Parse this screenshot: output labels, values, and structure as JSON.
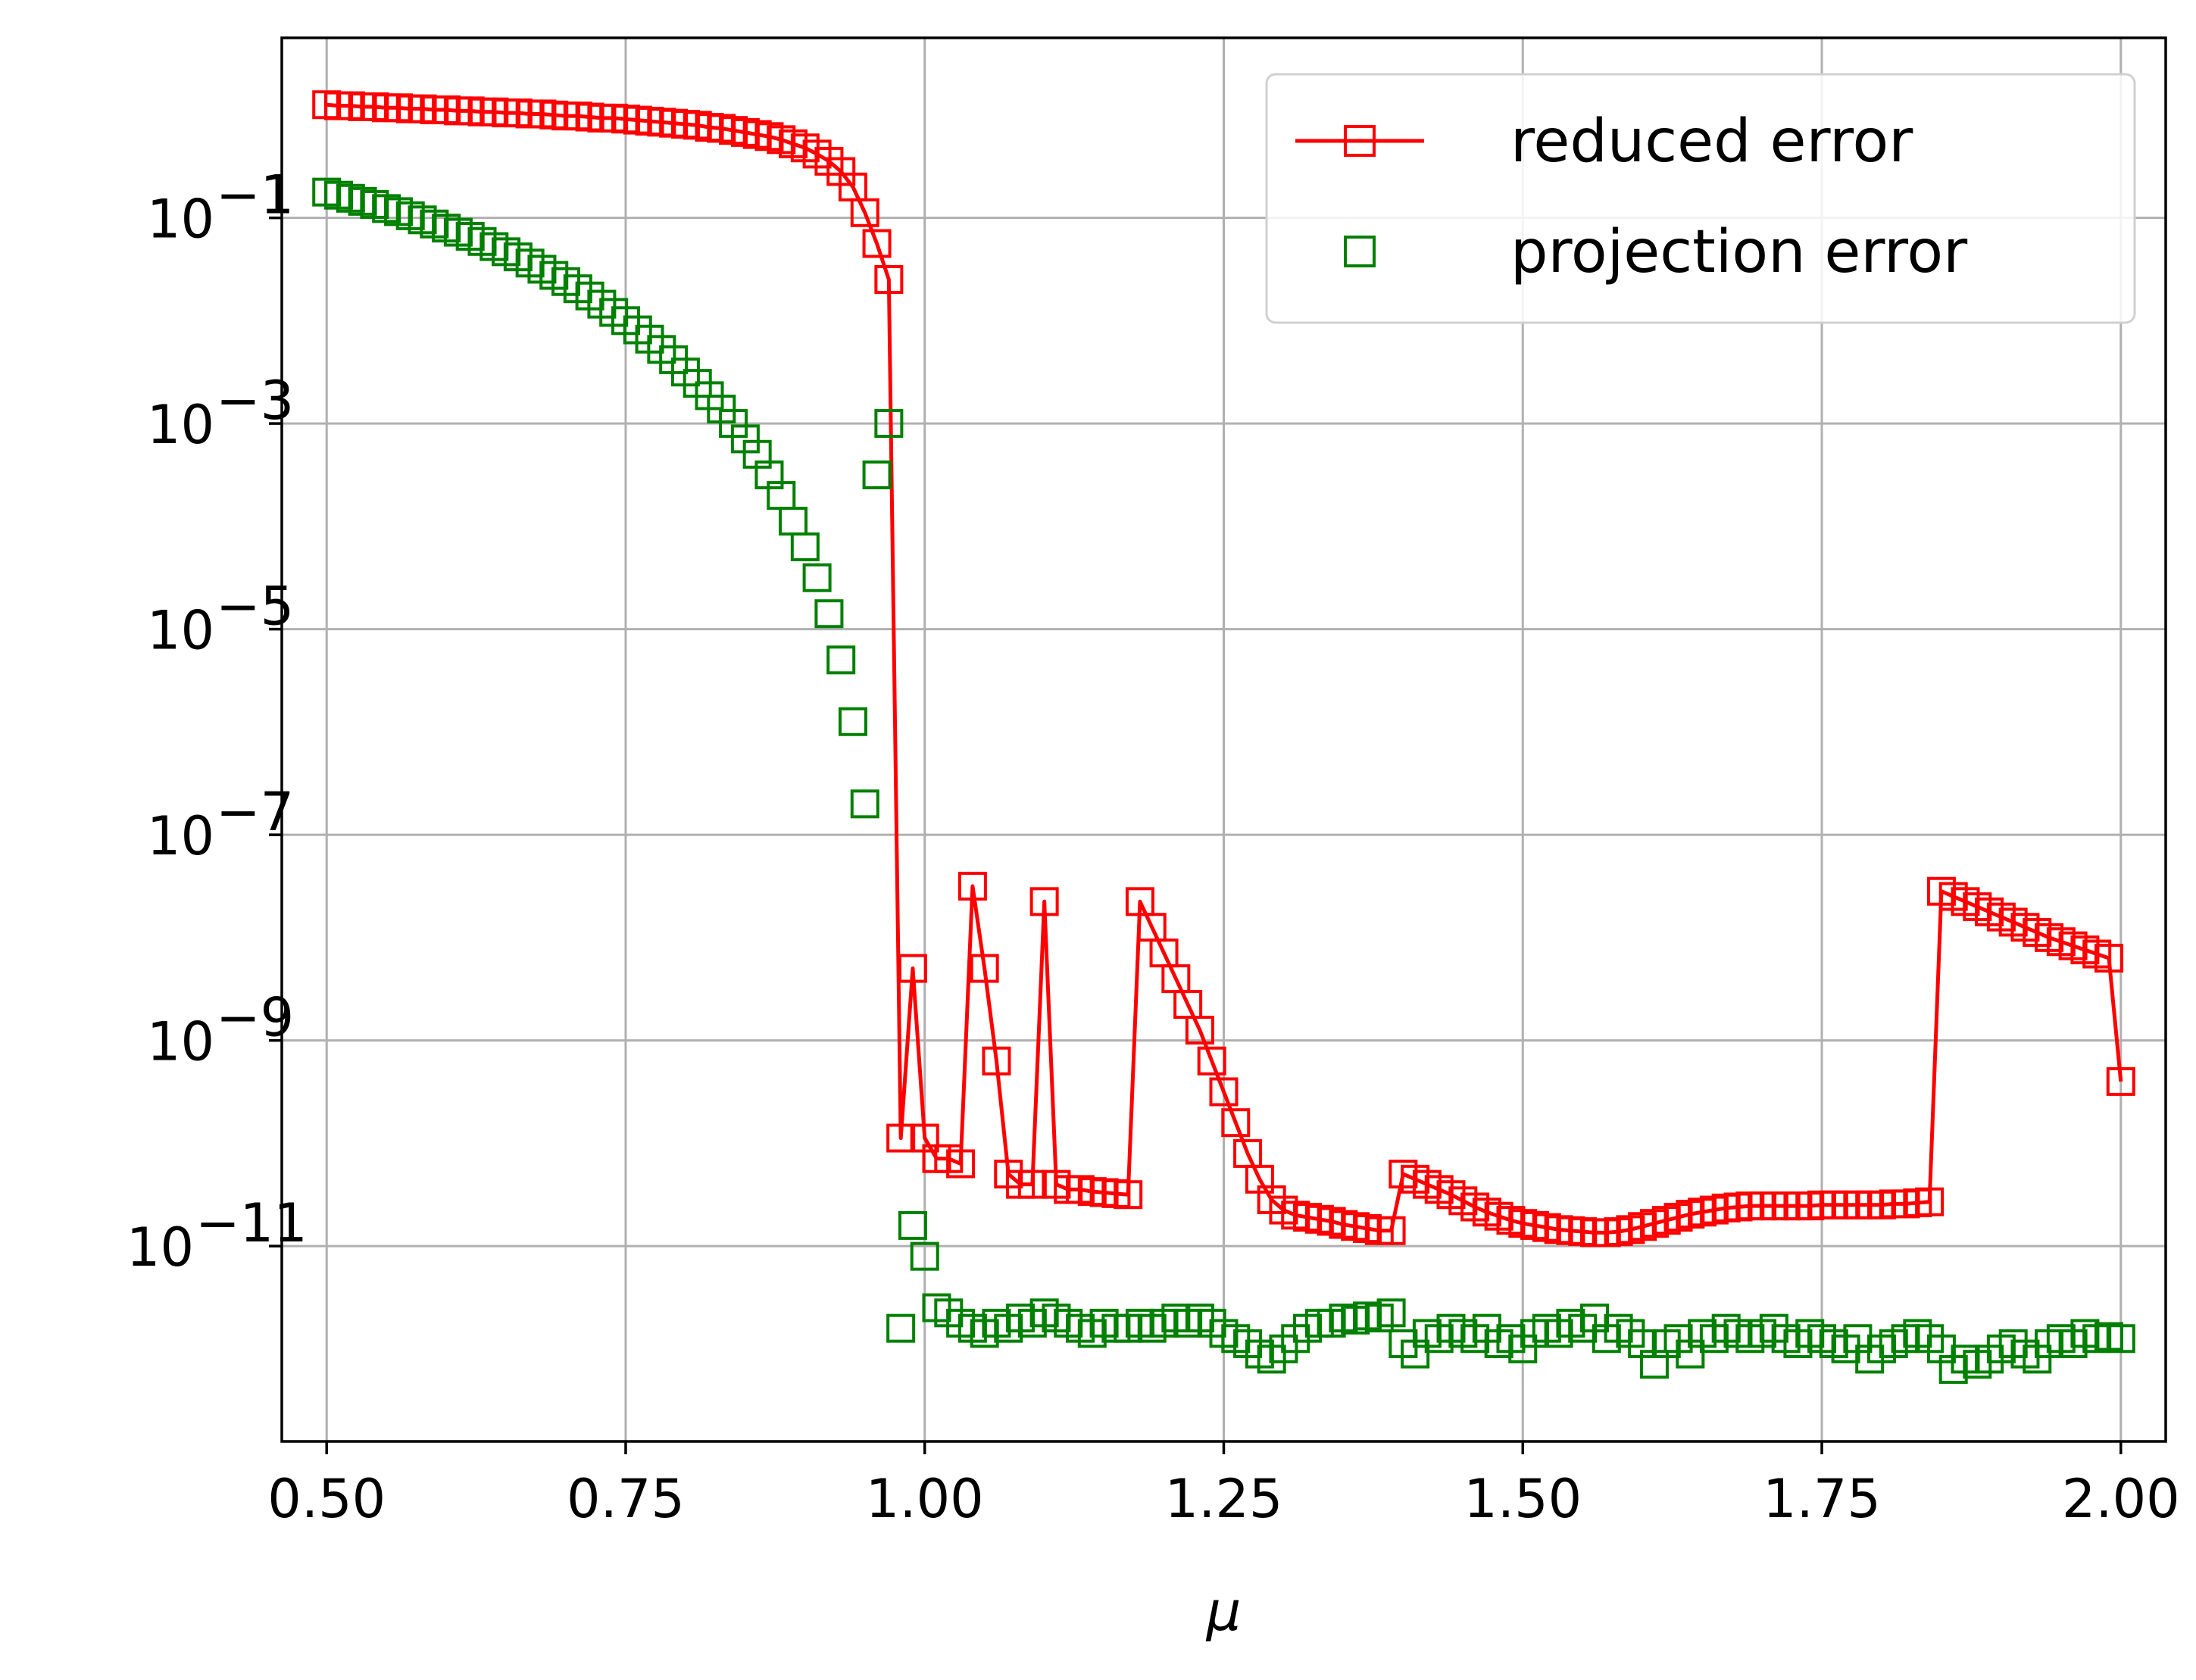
{
  "chart_data": {
    "type": "line",
    "title": "",
    "xlabel": "μ",
    "ylabel": "",
    "x_scale": "linear",
    "y_scale": "log",
    "xlim": [
      0.4625,
      2.0375
    ],
    "ylim_exp": [
      -12.9,
      0.75
    ],
    "grid": true,
    "legend_position": "top-right",
    "x_ticks": [
      0.5,
      0.75,
      1.0,
      1.25,
      1.5,
      1.75,
      2.0
    ],
    "x_tick_labels": [
      "0.50",
      "0.75",
      "1.00",
      "1.25",
      "1.50",
      "1.75",
      "2.00"
    ],
    "y_ticks_exp": [
      -1,
      -3,
      -5,
      -7,
      -9,
      -11
    ],
    "y_tick_base": "10",
    "y_tick_exponents": [
      "−1",
      "−3",
      "−5",
      "−7",
      "−9",
      "−11"
    ],
    "series": [
      {
        "name": "reduced error",
        "color": "#ff0000",
        "line": true,
        "marker": "square-open",
        "points_log10": [
          [
            0.5,
            0.1
          ],
          [
            0.51,
            0.09
          ],
          [
            0.52,
            0.09
          ],
          [
            0.53,
            0.08
          ],
          [
            0.54,
            0.08
          ],
          [
            0.55,
            0.07
          ],
          [
            0.56,
            0.07
          ],
          [
            0.57,
            0.06
          ],
          [
            0.58,
            0.06
          ],
          [
            0.59,
            0.05
          ],
          [
            0.6,
            0.05
          ],
          [
            0.61,
            0.04
          ],
          [
            0.62,
            0.04
          ],
          [
            0.63,
            0.03
          ],
          [
            0.64,
            0.03
          ],
          [
            0.65,
            0.02
          ],
          [
            0.66,
            0.02
          ],
          [
            0.67,
            0.01
          ],
          [
            0.68,
            0.01
          ],
          [
            0.69,
            0.0
          ],
          [
            0.7,
            -0.01
          ],
          [
            0.71,
            -0.01
          ],
          [
            0.72,
            -0.02
          ],
          [
            0.73,
            -0.03
          ],
          [
            0.74,
            -0.03
          ],
          [
            0.75,
            -0.04
          ],
          [
            0.76,
            -0.05
          ],
          [
            0.77,
            -0.06
          ],
          [
            0.78,
            -0.07
          ],
          [
            0.79,
            -0.08
          ],
          [
            0.8,
            -0.09
          ],
          [
            0.81,
            -0.1
          ],
          [
            0.82,
            -0.12
          ],
          [
            0.83,
            -0.13
          ],
          [
            0.84,
            -0.15
          ],
          [
            0.85,
            -0.17
          ],
          [
            0.86,
            -0.19
          ],
          [
            0.87,
            -0.21
          ],
          [
            0.88,
            -0.24
          ],
          [
            0.89,
            -0.28
          ],
          [
            0.9,
            -0.32
          ],
          [
            0.91,
            -0.38
          ],
          [
            0.92,
            -0.45
          ],
          [
            0.93,
            -0.55
          ],
          [
            0.94,
            -0.7
          ],
          [
            0.95,
            -0.95
          ],
          [
            0.96,
            -1.25
          ],
          [
            0.97,
            -1.6
          ],
          [
            0.98,
            -9.95
          ],
          [
            0.99,
            -8.3
          ],
          [
            1.0,
            -9.95
          ],
          [
            1.01,
            -10.15
          ],
          [
            1.02,
            -10.15
          ],
          [
            1.03,
            -10.2
          ],
          [
            1.04,
            -7.5
          ],
          [
            1.05,
            -8.3
          ],
          [
            1.06,
            -9.2
          ],
          [
            1.07,
            -10.3
          ],
          [
            1.08,
            -10.4
          ],
          [
            1.09,
            -10.4
          ],
          [
            1.1,
            -7.65
          ],
          [
            1.11,
            -10.4
          ],
          [
            1.12,
            -10.45
          ],
          [
            1.13,
            -10.45
          ],
          [
            1.14,
            -10.47
          ],
          [
            1.15,
            -10.48
          ],
          [
            1.16,
            -10.49
          ],
          [
            1.17,
            -10.5
          ],
          [
            1.18,
            -7.65
          ],
          [
            1.19,
            -7.9
          ],
          [
            1.2,
            -8.15
          ],
          [
            1.21,
            -8.4
          ],
          [
            1.22,
            -8.65
          ],
          [
            1.23,
            -8.9
          ],
          [
            1.24,
            -9.2
          ],
          [
            1.25,
            -9.5
          ],
          [
            1.26,
            -9.8
          ],
          [
            1.27,
            -10.1
          ],
          [
            1.28,
            -10.35
          ],
          [
            1.29,
            -10.55
          ],
          [
            1.3,
            -10.65
          ],
          [
            1.31,
            -10.7
          ],
          [
            1.32,
            -10.72
          ],
          [
            1.33,
            -10.74
          ],
          [
            1.34,
            -10.76
          ],
          [
            1.35,
            -10.79
          ],
          [
            1.36,
            -10.81
          ],
          [
            1.37,
            -10.83
          ],
          [
            1.38,
            -10.85
          ],
          [
            1.39,
            -10.85
          ],
          [
            1.4,
            -10.3
          ],
          [
            1.41,
            -10.35
          ],
          [
            1.42,
            -10.4
          ],
          [
            1.43,
            -10.45
          ],
          [
            1.44,
            -10.5
          ],
          [
            1.45,
            -10.56
          ],
          [
            1.46,
            -10.62
          ],
          [
            1.47,
            -10.67
          ],
          [
            1.48,
            -10.71
          ],
          [
            1.49,
            -10.75
          ],
          [
            1.5,
            -10.78
          ],
          [
            1.51,
            -10.8
          ],
          [
            1.52,
            -10.82
          ],
          [
            1.53,
            -10.84
          ],
          [
            1.54,
            -10.85
          ],
          [
            1.55,
            -10.86
          ],
          [
            1.56,
            -10.87
          ],
          [
            1.57,
            -10.87
          ],
          [
            1.58,
            -10.86
          ],
          [
            1.59,
            -10.84
          ],
          [
            1.6,
            -10.81
          ],
          [
            1.61,
            -10.78
          ],
          [
            1.62,
            -10.75
          ],
          [
            1.63,
            -10.72
          ],
          [
            1.64,
            -10.69
          ],
          [
            1.65,
            -10.67
          ],
          [
            1.66,
            -10.65
          ],
          [
            1.67,
            -10.63
          ],
          [
            1.68,
            -10.62
          ],
          [
            1.69,
            -10.61
          ],
          [
            1.7,
            -10.61
          ],
          [
            1.71,
            -10.61
          ],
          [
            1.72,
            -10.61
          ],
          [
            1.73,
            -10.61
          ],
          [
            1.74,
            -10.61
          ],
          [
            1.75,
            -10.6
          ],
          [
            1.76,
            -10.6
          ],
          [
            1.77,
            -10.6
          ],
          [
            1.78,
            -10.6
          ],
          [
            1.79,
            -10.6
          ],
          [
            1.8,
            -10.6
          ],
          [
            1.81,
            -10.59
          ],
          [
            1.82,
            -10.59
          ],
          [
            1.83,
            -10.58
          ],
          [
            1.84,
            -10.57
          ],
          [
            1.85,
            -7.55
          ],
          [
            1.86,
            -7.6
          ],
          [
            1.87,
            -7.65
          ],
          [
            1.88,
            -7.7
          ],
          [
            1.89,
            -7.75
          ],
          [
            1.9,
            -7.8
          ],
          [
            1.91,
            -7.85
          ],
          [
            1.92,
            -7.9
          ],
          [
            1.93,
            -7.95
          ],
          [
            1.94,
            -8.0
          ],
          [
            1.95,
            -8.04
          ],
          [
            1.96,
            -8.08
          ],
          [
            1.97,
            -8.12
          ],
          [
            1.98,
            -8.16
          ],
          [
            1.99,
            -8.2
          ],
          [
            2.0,
            -9.4
          ]
        ]
      },
      {
        "name": "projection error",
        "color": "#008000",
        "line": false,
        "marker": "square-open",
        "points_log10": [
          [
            0.5,
            -0.75
          ],
          [
            0.51,
            -0.78
          ],
          [
            0.52,
            -0.81
          ],
          [
            0.53,
            -0.84
          ],
          [
            0.54,
            -0.87
          ],
          [
            0.55,
            -0.91
          ],
          [
            0.56,
            -0.94
          ],
          [
            0.57,
            -0.98
          ],
          [
            0.58,
            -1.02
          ],
          [
            0.59,
            -1.06
          ],
          [
            0.6,
            -1.1
          ],
          [
            0.61,
            -1.14
          ],
          [
            0.62,
            -1.18
          ],
          [
            0.63,
            -1.23
          ],
          [
            0.64,
            -1.28
          ],
          [
            0.65,
            -1.33
          ],
          [
            0.66,
            -1.38
          ],
          [
            0.67,
            -1.44
          ],
          [
            0.68,
            -1.5
          ],
          [
            0.69,
            -1.56
          ],
          [
            0.7,
            -1.62
          ],
          [
            0.71,
            -1.69
          ],
          [
            0.72,
            -1.76
          ],
          [
            0.73,
            -1.84
          ],
          [
            0.74,
            -1.92
          ],
          [
            0.75,
            -2.0
          ],
          [
            0.76,
            -2.09
          ],
          [
            0.77,
            -2.18
          ],
          [
            0.78,
            -2.28
          ],
          [
            0.79,
            -2.38
          ],
          [
            0.8,
            -2.5
          ],
          [
            0.81,
            -2.61
          ],
          [
            0.82,
            -2.73
          ],
          [
            0.83,
            -2.86
          ],
          [
            0.84,
            -3.0
          ],
          [
            0.85,
            -3.15
          ],
          [
            0.86,
            -3.3
          ],
          [
            0.87,
            -3.5
          ],
          [
            0.88,
            -3.7
          ],
          [
            0.89,
            -3.95
          ],
          [
            0.9,
            -4.2
          ],
          [
            0.91,
            -4.5
          ],
          [
            0.92,
            -4.85
          ],
          [
            0.93,
            -5.3
          ],
          [
            0.94,
            -5.9
          ],
          [
            0.95,
            -6.7
          ],
          [
            0.96,
            -3.5
          ],
          [
            0.97,
            -3.0
          ],
          [
            0.98,
            -11.8
          ],
          [
            0.99,
            -10.8
          ],
          [
            1.0,
            -11.1
          ],
          [
            1.01,
            -11.6
          ],
          [
            1.02,
            -11.65
          ],
          [
            1.03,
            -11.75
          ],
          [
            1.04,
            -11.8
          ],
          [
            1.05,
            -11.85
          ],
          [
            1.06,
            -11.75
          ],
          [
            1.07,
            -11.8
          ],
          [
            1.08,
            -11.7
          ],
          [
            1.09,
            -11.75
          ],
          [
            1.1,
            -11.65
          ],
          [
            1.11,
            -11.7
          ],
          [
            1.12,
            -11.75
          ],
          [
            1.13,
            -11.8
          ],
          [
            1.14,
            -11.85
          ],
          [
            1.15,
            -11.75
          ],
          [
            1.16,
            -11.8
          ],
          [
            1.17,
            -11.8
          ],
          [
            1.18,
            -11.75
          ],
          [
            1.19,
            -11.8
          ],
          [
            1.2,
            -11.75
          ],
          [
            1.21,
            -11.7
          ],
          [
            1.22,
            -11.75
          ],
          [
            1.23,
            -11.7
          ],
          [
            1.24,
            -11.75
          ],
          [
            1.25,
            -11.85
          ],
          [
            1.26,
            -11.9
          ],
          [
            1.27,
            -11.95
          ],
          [
            1.28,
            -12.05
          ],
          [
            1.29,
            -12.1
          ],
          [
            1.3,
            -12.0
          ],
          [
            1.31,
            -11.9
          ],
          [
            1.32,
            -11.8
          ],
          [
            1.33,
            -11.75
          ],
          [
            1.34,
            -11.75
          ],
          [
            1.35,
            -11.7
          ],
          [
            1.36,
            -11.72
          ],
          [
            1.37,
            -11.68
          ],
          [
            1.38,
            -11.7
          ],
          [
            1.39,
            -11.65
          ],
          [
            1.4,
            -11.95
          ],
          [
            1.41,
            -12.05
          ],
          [
            1.42,
            -11.85
          ],
          [
            1.43,
            -11.9
          ],
          [
            1.44,
            -11.8
          ],
          [
            1.45,
            -11.85
          ],
          [
            1.46,
            -11.9
          ],
          [
            1.47,
            -11.8
          ],
          [
            1.48,
            -11.95
          ],
          [
            1.49,
            -11.9
          ],
          [
            1.5,
            -12.0
          ],
          [
            1.51,
            -11.85
          ],
          [
            1.52,
            -11.8
          ],
          [
            1.53,
            -11.85
          ],
          [
            1.54,
            -11.75
          ],
          [
            1.55,
            -11.8
          ],
          [
            1.56,
            -11.7
          ],
          [
            1.57,
            -11.9
          ],
          [
            1.58,
            -11.8
          ],
          [
            1.59,
            -11.85
          ],
          [
            1.6,
            -11.95
          ],
          [
            1.61,
            -12.15
          ],
          [
            1.62,
            -11.95
          ],
          [
            1.63,
            -11.9
          ],
          [
            1.64,
            -12.05
          ],
          [
            1.65,
            -11.85
          ],
          [
            1.66,
            -11.9
          ],
          [
            1.67,
            -11.8
          ],
          [
            1.68,
            -11.85
          ],
          [
            1.69,
            -11.9
          ],
          [
            1.7,
            -11.85
          ],
          [
            1.71,
            -11.8
          ],
          [
            1.72,
            -11.9
          ],
          [
            1.73,
            -11.95
          ],
          [
            1.74,
            -11.85
          ],
          [
            1.75,
            -11.9
          ],
          [
            1.76,
            -11.95
          ],
          [
            1.77,
            -12.0
          ],
          [
            1.78,
            -11.9
          ],
          [
            1.79,
            -12.1
          ],
          [
            1.8,
            -12.0
          ],
          [
            1.81,
            -11.95
          ],
          [
            1.82,
            -11.9
          ],
          [
            1.83,
            -11.85
          ],
          [
            1.84,
            -11.9
          ],
          [
            1.85,
            -12.0
          ],
          [
            1.86,
            -12.2
          ],
          [
            1.87,
            -12.1
          ],
          [
            1.88,
            -12.15
          ],
          [
            1.89,
            -12.1
          ],
          [
            1.9,
            -12.0
          ],
          [
            1.91,
            -11.95
          ],
          [
            1.92,
            -12.05
          ],
          [
            1.93,
            -12.1
          ],
          [
            1.94,
            -11.95
          ],
          [
            1.95,
            -11.9
          ],
          [
            1.96,
            -11.95
          ],
          [
            1.97,
            -11.85
          ],
          [
            1.98,
            -11.9
          ],
          [
            1.99,
            -11.88
          ],
          [
            2.0,
            -11.9
          ]
        ]
      }
    ]
  }
}
